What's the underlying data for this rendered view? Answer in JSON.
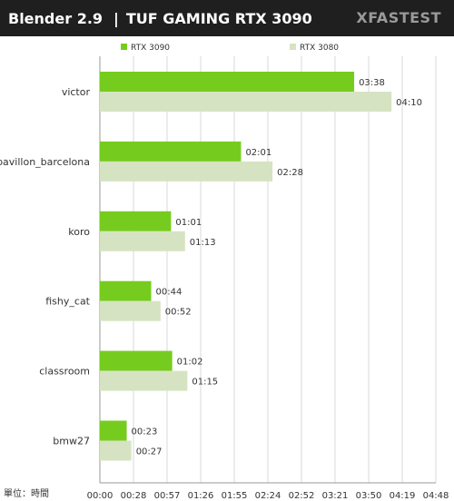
{
  "header": {
    "title_left": "Blender 2.9",
    "separator": "|",
    "title_right": "TUF GAMING RTX 3090",
    "brand": "XFASTEST"
  },
  "unit_label": "單位：時間",
  "colors": {
    "rtx3090": "#76cc1e",
    "rtx3080": "#d6e3c2",
    "grid": "#d9d9d9",
    "text": "#333333"
  },
  "chart_data": {
    "type": "bar",
    "orientation": "horizontal",
    "categories": [
      "victor",
      "pavillon_barcelona",
      "koro",
      "fishy_cat",
      "classroom",
      "bmw27"
    ],
    "series": [
      {
        "name": "RTX 3090",
        "values": [
          218,
          121,
          61,
          44,
          62,
          23
        ],
        "labels": [
          "03:38",
          "02:01",
          "01:01",
          "00:44",
          "01:02",
          "00:23"
        ]
      },
      {
        "name": "RTX 3080",
        "values": [
          250,
          148,
          73,
          52,
          75,
          27
        ],
        "labels": [
          "04:10",
          "02:28",
          "01:13",
          "00:52",
          "01:15",
          "00:27"
        ]
      }
    ],
    "x_ticks": [
      "00:00",
      "00:28",
      "00:57",
      "01:26",
      "01:55",
      "02:24",
      "02:52",
      "03:21",
      "03:50",
      "04:19",
      "04:48"
    ],
    "xlim": [
      0,
      288
    ],
    "legend": "top",
    "grid": "vertical"
  }
}
